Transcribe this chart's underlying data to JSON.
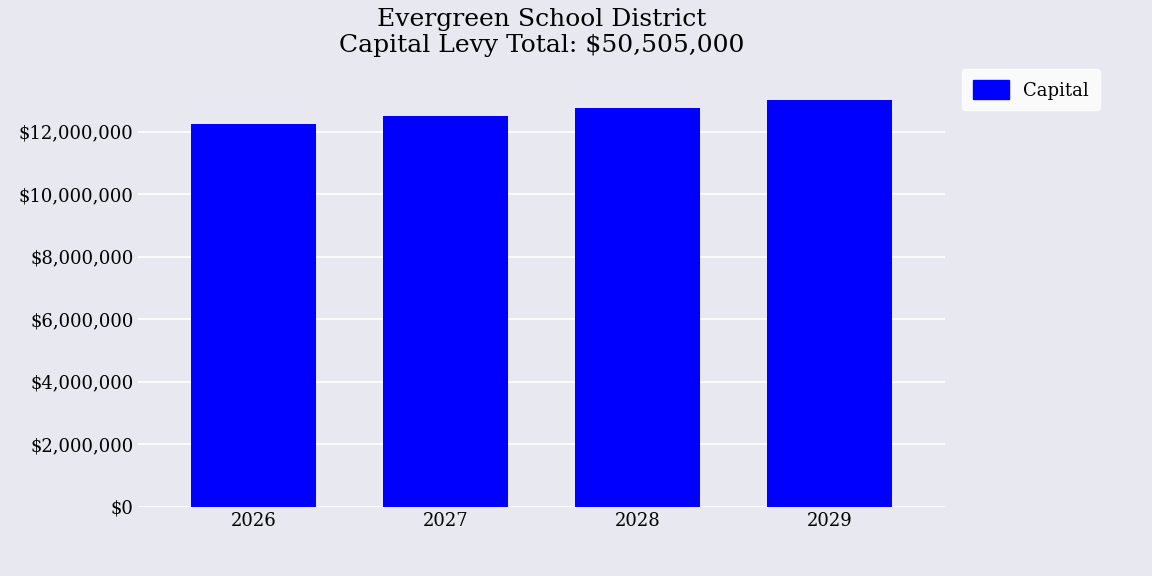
{
  "title_line1": "Evergreen School District",
  "title_line2": "Capital Levy Total: $50,505,000",
  "categories": [
    2026,
    2027,
    2028,
    2029
  ],
  "values": [
    12250000,
    12500000,
    12755000,
    13000000
  ],
  "bar_color": "#0000FF",
  "background_color": "#E8E8F0",
  "plot_bg_color": "#E8E8F0",
  "legend_label": "Capital",
  "ylim": [
    0,
    14000000
  ],
  "yticks": [
    0,
    2000000,
    4000000,
    6000000,
    8000000,
    10000000,
    12000000
  ],
  "title_fontsize": 18,
  "tick_fontsize": 13,
  "bar_width": 0.65
}
